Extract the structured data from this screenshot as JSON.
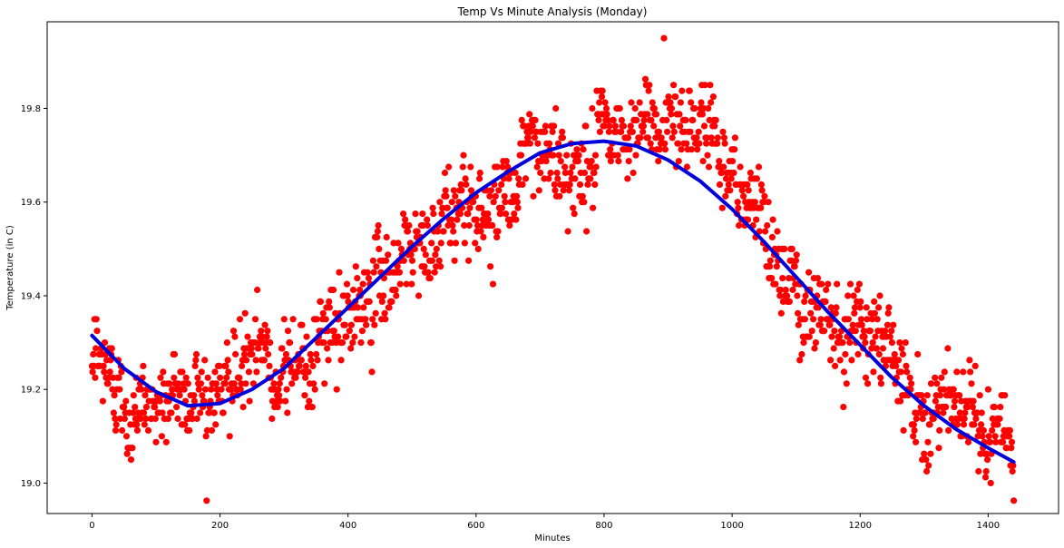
{
  "chart_data": {
    "type": "scatter",
    "title": "Temp Vs Minute Analysis (Monday)",
    "xlabel": "Minutes",
    "ylabel": "Temperature (in C)",
    "xlim": [
      -70,
      1510
    ],
    "ylim": [
      18.935,
      19.985
    ],
    "xticks": [
      0,
      200,
      400,
      600,
      800,
      1000,
      1200,
      1400
    ],
    "yticks": [
      19.0,
      19.2,
      19.4,
      19.6,
      19.8
    ],
    "ytick_labels": [
      "19.0",
      "19.2",
      "19.4",
      "19.6",
      "19.8"
    ],
    "grid": false,
    "legend": "none",
    "series": [
      {
        "kind": "scatter",
        "color": "#ff0000",
        "seed": 12345,
        "n_points": 1440,
        "x_range": [
          0,
          1440
        ],
        "baseline_anchors": [
          [
            0,
            19.25
          ],
          [
            60,
            19.18
          ],
          [
            100,
            19.17
          ],
          [
            150,
            19.19
          ],
          [
            200,
            19.22
          ],
          [
            300,
            19.27
          ],
          [
            350,
            19.29
          ],
          [
            400,
            19.32
          ],
          [
            450,
            19.43
          ],
          [
            500,
            19.52
          ],
          [
            550,
            19.56
          ],
          [
            600,
            19.58
          ],
          [
            650,
            19.64
          ],
          [
            700,
            19.69
          ],
          [
            750,
            19.66
          ],
          [
            800,
            19.73
          ],
          [
            850,
            19.74
          ],
          [
            900,
            19.79
          ],
          [
            950,
            19.79
          ],
          [
            1000,
            19.67
          ],
          [
            1050,
            19.55
          ],
          [
            1100,
            19.42
          ],
          [
            1150,
            19.38
          ],
          [
            1200,
            19.34
          ],
          [
            1250,
            19.29
          ],
          [
            1300,
            19.18
          ],
          [
            1350,
            19.15
          ],
          [
            1400,
            19.11
          ],
          [
            1440,
            19.07
          ]
        ],
        "noise_sd": 0.045,
        "quantize_step": 0.0125
      },
      {
        "kind": "line",
        "color": "#0000dd",
        "fit_points": [
          [
            0,
            19.315
          ],
          [
            50,
            19.245
          ],
          [
            100,
            19.195
          ],
          [
            150,
            19.165
          ],
          [
            200,
            19.17
          ],
          [
            250,
            19.2
          ],
          [
            300,
            19.245
          ],
          [
            350,
            19.31
          ],
          [
            400,
            19.375
          ],
          [
            450,
            19.44
          ],
          [
            500,
            19.505
          ],
          [
            550,
            19.565
          ],
          [
            600,
            19.62
          ],
          [
            650,
            19.665
          ],
          [
            700,
            19.705
          ],
          [
            750,
            19.725
          ],
          [
            800,
            19.73
          ],
          [
            850,
            19.72
          ],
          [
            900,
            19.69
          ],
          [
            950,
            19.645
          ],
          [
            1000,
            19.585
          ],
          [
            1050,
            19.515
          ],
          [
            1100,
            19.44
          ],
          [
            1150,
            19.365
          ],
          [
            1200,
            19.295
          ],
          [
            1250,
            19.225
          ],
          [
            1300,
            19.165
          ],
          [
            1350,
            19.115
          ],
          [
            1400,
            19.075
          ],
          [
            1440,
            19.045
          ]
        ]
      }
    ]
  }
}
